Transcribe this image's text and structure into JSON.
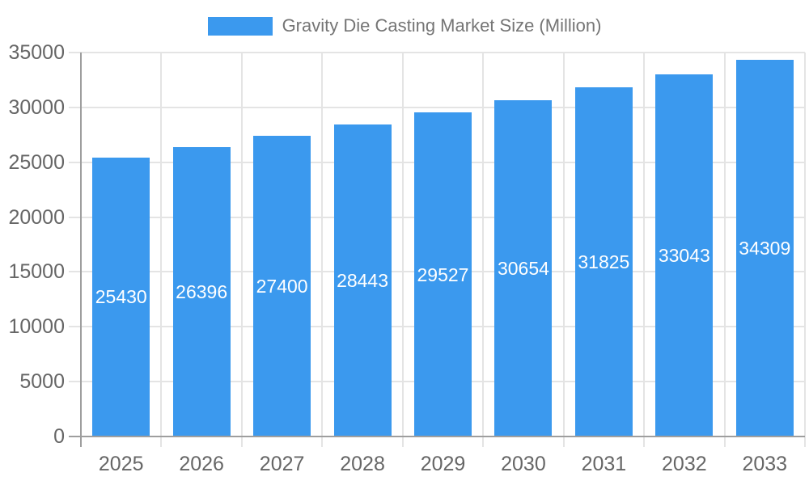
{
  "chart_data": {
    "type": "bar",
    "title": "Gravity Die Casting Market Size (Million)",
    "legend": {
      "position": "top",
      "label": "Gravity Die Casting Market Size (Million)"
    },
    "categories": [
      "2025",
      "2026",
      "2027",
      "2028",
      "2029",
      "2030",
      "2031",
      "2032",
      "2033"
    ],
    "series": [
      {
        "name": "Gravity Die Casting Market Size (Million)",
        "values": [
          25430,
          26396,
          27400,
          28443,
          29527,
          30654,
          31825,
          33043,
          34309
        ]
      }
    ],
    "xlabel": "",
    "ylabel": "",
    "ylim": [
      0,
      35000
    ],
    "ytick_interval": 5000,
    "ytick_labels": [
      "0",
      "5000",
      "10000",
      "15000",
      "20000",
      "25000",
      "30000",
      "35000"
    ],
    "grid": true,
    "value_labels": {
      "position": "inside-center",
      "color": "#ffffff"
    }
  },
  "colors": {
    "bar": "#3B99EE",
    "legend_text": "#757575",
    "axis_text": "#666666",
    "axis_line": "#9E9E9E",
    "gridline": "#E4E4E4",
    "value_label": "#FFFFFF",
    "background": "#FFFFFF"
  }
}
